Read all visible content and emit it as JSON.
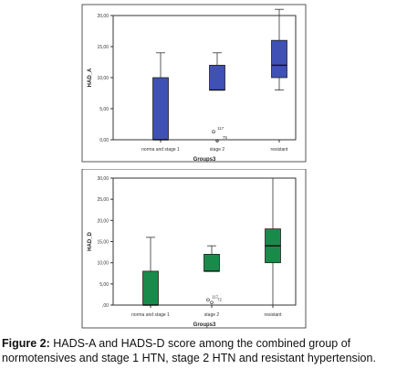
{
  "chart_data": [
    {
      "type": "box",
      "xlabel": "Groups3",
      "ylabel": "HAD_A",
      "ylim": [
        0,
        20
      ],
      "yticks": [
        "0,00",
        "5,00",
        "10,00",
        "15,00",
        "20,00"
      ],
      "categories": [
        "norma and stage 1",
        "stage 2",
        "resistant"
      ],
      "color": "#3f51b5",
      "grid": false,
      "boxes": [
        {
          "category": "norma and stage 1",
          "min": 0,
          "q1": 0,
          "median": 0,
          "q3": 10,
          "max": 14
        },
        {
          "category": "stage 2",
          "min": 8,
          "q1": 8,
          "median": 8,
          "q3": 12,
          "max": 14
        },
        {
          "category": "resistant",
          "min": 8,
          "q1": 10,
          "median": 12,
          "q3": 16,
          "max": 21
        }
      ],
      "outliers": [
        {
          "category": "stage 2",
          "label": "117",
          "value": 1
        },
        {
          "category": "stage 2",
          "label": "75",
          "value": 0
        }
      ]
    },
    {
      "type": "box",
      "xlabel": "Groups3",
      "ylabel": "HAD_D",
      "ylim": [
        0,
        30
      ],
      "yticks": [
        ",00",
        "5,00",
        "10,00",
        "15,00",
        "20,00",
        "25,00",
        "30,00"
      ],
      "categories": [
        "norma and stage 1",
        "stage 2",
        "resistant"
      ],
      "color": "#1a8a4a",
      "grid": false,
      "boxes": [
        {
          "category": "norma and stage 1",
          "min": 0,
          "q1": 0,
          "median": 0,
          "q3": 8,
          "max": 16
        },
        {
          "category": "stage 2",
          "min": 8,
          "q1": 8,
          "median": 8,
          "q3": 12,
          "max": 14
        },
        {
          "category": "resistant",
          "min": 0,
          "q1": 10,
          "median": 14,
          "q3": 18,
          "max": 30
        }
      ],
      "outliers": [
        {
          "category": "stage 2",
          "label": "117",
          "value": 0.8
        },
        {
          "category": "stage 2",
          "label": "72",
          "value": 0.8
        }
      ]
    }
  ],
  "caption": {
    "label": "Figure 2:",
    "text": " HADS-A and HADS-D score among the combined group of normotensives and stage 1 HTN, stage 2 HTN and resistant hypertension."
  }
}
